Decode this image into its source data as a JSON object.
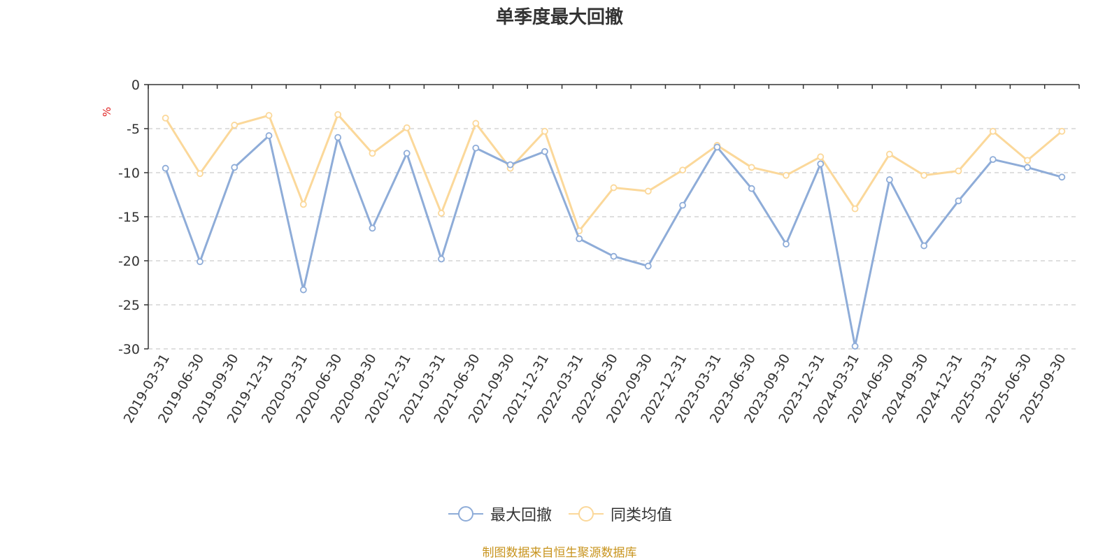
{
  "chart_data": {
    "type": "line",
    "title": "单季度最大回撤",
    "ylabel": "%",
    "ylim": [
      -30,
      0
    ],
    "yticks": [
      0,
      -5,
      -10,
      -15,
      -20,
      -25,
      -30
    ],
    "grid": true,
    "legend_position": "bottom",
    "categories": [
      "2019-03-31",
      "2019-06-30",
      "2019-09-30",
      "2019-12-31",
      "2020-03-31",
      "2020-06-30",
      "2020-09-30",
      "2020-12-31",
      "2021-03-31",
      "2021-06-30",
      "2021-09-30",
      "2021-12-31",
      "2022-03-31",
      "2022-06-30",
      "2022-09-30",
      "2022-12-31",
      "2023-03-31",
      "2023-06-30",
      "2023-09-30",
      "2023-12-31",
      "2024-03-31",
      "2024-06-30",
      "2024-09-30",
      "2024-12-31",
      "2025-03-31",
      "2025-06-30",
      "2025-09-30"
    ],
    "series": [
      {
        "name": "最大回撤",
        "color": "#8eacd8",
        "values": [
          -9.5,
          -20.1,
          -9.4,
          -5.8,
          -23.3,
          -6.0,
          -16.3,
          -7.8,
          -19.8,
          -7.2,
          -9.1,
          -7.6,
          -17.5,
          -19.5,
          -20.6,
          -13.7,
          -7.1,
          -11.8,
          -18.1,
          -9.0,
          -29.7,
          -10.8,
          -18.3,
          -13.2,
          -8.5,
          -9.4,
          -10.5
        ]
      },
      {
        "name": "同类均值",
        "color": "#fbd89a",
        "values": [
          -3.8,
          -10.1,
          -4.6,
          -3.5,
          -13.6,
          -3.4,
          -7.8,
          -4.9,
          -14.6,
          -4.4,
          -9.5,
          -5.3,
          -16.6,
          -11.7,
          -12.1,
          -9.7,
          -6.9,
          -9.4,
          -10.3,
          -8.2,
          -14.1,
          -7.9,
          -10.3,
          -9.8,
          -5.3,
          -8.6,
          -5.3
        ]
      }
    ]
  },
  "source": "制图数据来自恒生聚源数据库"
}
